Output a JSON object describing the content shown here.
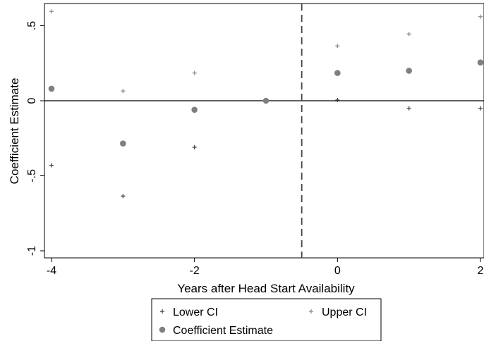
{
  "chart_data": {
    "type": "scatter",
    "title": "",
    "xlabel": "Years after Head Start Availability",
    "ylabel": "Coefficient Estimate",
    "xlim": [
      -4,
      2
    ],
    "ylim": [
      -1.05,
      0.65
    ],
    "x_ticks": [
      -4,
      -2,
      0,
      2
    ],
    "x_tick_labels": [
      "-4",
      "-2",
      "0",
      "2"
    ],
    "y_ticks": [
      -1,
      -0.5,
      0,
      0.5
    ],
    "y_tick_labels": [
      "-1",
      "-.5",
      "0",
      ".5"
    ],
    "grid": false,
    "reference_lines": {
      "horizontal_y": 0,
      "vertical_x": -0.5,
      "vertical_style": "dashed"
    },
    "legend_position": "bottom",
    "series": [
      {
        "name": "Lower CI",
        "marker": "plus",
        "color": "#444444",
        "x": [
          -4,
          -3,
          -2,
          -1,
          0,
          1,
          2
        ],
        "y": [
          -0.43,
          -0.635,
          -0.31,
          0.0,
          0.005,
          -0.05,
          -0.05
        ]
      },
      {
        "name": "Upper CI",
        "marker": "plus",
        "color": "#8c8c8c",
        "x": [
          -4,
          -3,
          -2,
          -1,
          0,
          1,
          2
        ],
        "y": [
          0.595,
          0.065,
          0.185,
          0.0,
          0.365,
          0.445,
          0.56
        ]
      },
      {
        "name": "Coefficient Estimate",
        "marker": "circle",
        "color": "#7f7f7f",
        "x": [
          -4,
          -3,
          -2,
          -1,
          0,
          1,
          2
        ],
        "y": [
          0.08,
          -0.285,
          -0.06,
          0.0,
          0.185,
          0.2,
          0.255
        ]
      }
    ]
  }
}
